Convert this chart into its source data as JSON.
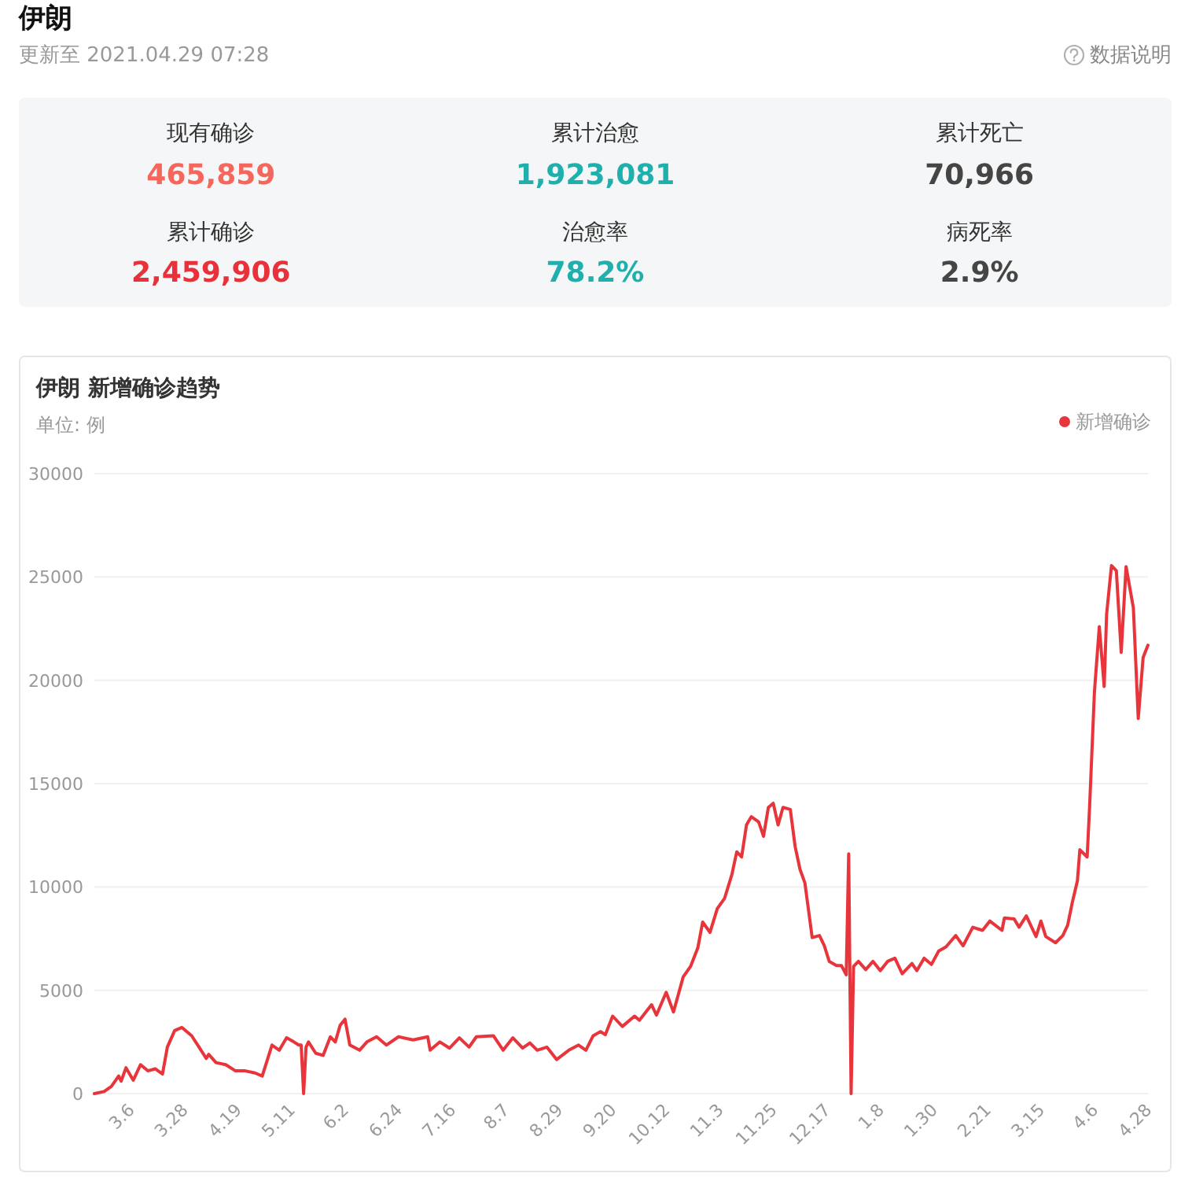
{
  "chart_data": [
    {
      "type": "other",
      "title": "伊朗",
      "subtitle": "更新至 2021.04.29 07:28",
      "annotations": [
        "数据说明",
        "现有确诊",
        "465,859",
        "累计治愈",
        "1,923,081",
        "累计死亡",
        "70,966",
        "累计确诊",
        "2,459,906",
        "治愈率",
        "78.2%",
        "病死率",
        "2.9%"
      ]
    },
    {
      "type": "line",
      "title": "伊朗 新增确诊趋势",
      "ylabel": "单位: 例",
      "x": [
        "2020-02-20",
        "2020-02-24",
        "2020-02-27",
        "2020-03-01",
        "2020-03-02",
        "2020-03-04",
        "2020-03-07",
        "2020-03-10",
        "2020-03-13",
        "2020-03-16",
        "2020-03-19",
        "2020-03-21",
        "2020-03-24",
        "2020-03-27",
        "2020-03-31",
        "2020-04-03",
        "2020-04-06",
        "2020-04-07",
        "2020-04-10",
        "2020-04-14",
        "2020-04-18",
        "2020-04-22",
        "2020-04-26",
        "2020-04-29",
        "2020-05-03",
        "2020-05-06",
        "2020-05-09",
        "2020-05-12",
        "2020-05-14",
        "2020-05-15",
        "2020-05-16",
        "2020-05-17",
        "2020-05-18",
        "2020-05-21",
        "2020-05-24",
        "2020-05-27",
        "2020-05-29",
        "2020-05-31",
        "2020-06-02",
        "2020-06-04",
        "2020-06-08",
        "2020-06-11",
        "2020-06-15",
        "2020-06-19",
        "2020-06-24",
        "2020-06-30",
        "2020-07-06",
        "2020-07-07",
        "2020-07-11",
        "2020-07-15",
        "2020-07-19",
        "2020-07-23",
        "2020-07-26",
        "2020-08-02",
        "2020-08-06",
        "2020-08-10",
        "2020-08-14",
        "2020-08-17",
        "2020-08-20",
        "2020-08-24",
        "2020-08-28",
        "2020-09-02",
        "2020-09-06",
        "2020-09-09",
        "2020-09-12",
        "2020-09-15",
        "2020-09-17",
        "2020-09-20",
        "2020-09-24",
        "2020-09-29",
        "2020-10-01",
        "2020-10-06",
        "2020-10-08",
        "2020-10-12",
        "2020-10-15",
        "2020-10-19",
        "2020-10-22",
        "2020-10-25",
        "2020-10-27",
        "2020-10-30",
        "2020-11-02",
        "2020-11-05",
        "2020-11-08",
        "2020-11-10",
        "2020-11-12",
        "2020-11-14",
        "2020-11-16",
        "2020-11-19",
        "2020-11-21",
        "2020-11-23",
        "2020-11-25",
        "2020-11-27",
        "2020-11-29",
        "2020-12-02",
        "2020-12-04",
        "2020-12-06",
        "2020-12-08",
        "2020-12-11",
        "2020-12-14",
        "2020-12-16",
        "2020-12-18",
        "2020-12-21",
        "2020-12-23",
        "2020-12-25",
        "2020-12-26",
        "2020-12-27",
        "2020-12-28",
        "2020-12-30",
        "2021-01-02",
        "2021-01-05",
        "2021-01-08",
        "2021-01-11",
        "2021-01-14",
        "2021-01-17",
        "2021-01-21",
        "2021-01-23",
        "2021-01-26",
        "2021-01-29",
        "2021-02-01",
        "2021-02-04",
        "2021-02-08",
        "2021-02-11",
        "2021-02-15",
        "2021-02-19",
        "2021-02-22",
        "2021-02-27",
        "2021-02-28",
        "2021-03-04",
        "2021-03-06",
        "2021-03-09",
        "2021-03-13",
        "2021-03-15",
        "2021-03-17",
        "2021-03-21",
        "2021-03-24",
        "2021-03-26",
        "2021-03-28",
        "2021-03-30",
        "2021-03-31",
        "2021-04-03",
        "2021-04-04",
        "2021-04-06",
        "2021-04-08",
        "2021-04-10",
        "2021-04-11",
        "2021-04-13",
        "2021-04-15",
        "2021-04-17",
        "2021-04-19",
        "2021-04-22",
        "2021-04-24",
        "2021-04-26",
        "2021-04-28"
      ],
      "series": [
        {
          "name": "新增确诊",
          "color": "#e8353b",
          "values": [
            0,
            100,
            350,
            850,
            600,
            1250,
            650,
            1400,
            1100,
            1200,
            950,
            2250,
            3050,
            3200,
            2800,
            2250,
            1700,
            1900,
            1500,
            1400,
            1100,
            1100,
            1000,
            850,
            2350,
            2100,
            2700,
            2500,
            2350,
            2350,
            0,
            2250,
            2500,
            1950,
            1850,
            2750,
            2500,
            3300,
            3600,
            2350,
            2100,
            2500,
            2750,
            2350,
            2750,
            2600,
            2750,
            2100,
            2500,
            2200,
            2700,
            2250,
            2750,
            2800,
            2100,
            2700,
            2200,
            2450,
            2100,
            2250,
            1650,
            2100,
            2350,
            2100,
            2800,
            3000,
            2850,
            3750,
            3250,
            3750,
            3550,
            4300,
            3800,
            4900,
            3950,
            5650,
            6150,
            7050,
            8300,
            7800,
            8950,
            9450,
            10600,
            11700,
            11450,
            13000,
            13400,
            13150,
            12450,
            13850,
            14050,
            13000,
            13850,
            13750,
            11950,
            10850,
            10200,
            7550,
            7650,
            7150,
            6400,
            6200,
            6200,
            5750,
            11600,
            0,
            6150,
            6400,
            6000,
            6400,
            5950,
            6400,
            6550,
            5800,
            6300,
            5950,
            6550,
            6250,
            6900,
            7100,
            7650,
            7150,
            8050,
            7900,
            8350,
            7900,
            8500,
            8450,
            8050,
            8600,
            7600,
            8350,
            7600,
            7300,
            7650,
            8150,
            9300,
            10300,
            11800,
            11450,
            13850,
            19450,
            22600,
            19700,
            23200,
            25550,
            25300,
            21350,
            25500,
            23500,
            18150,
            21100,
            21700
          ]
        }
      ],
      "xlim": [
        "2020-02-20",
        "2021-04-28"
      ],
      "xticks": [
        {
          "value": "2020-03-06",
          "label": "3.6"
        },
        {
          "value": "2020-03-28",
          "label": "3.28"
        },
        {
          "value": "2020-04-19",
          "label": "4.19"
        },
        {
          "value": "2020-05-11",
          "label": "5.11"
        },
        {
          "value": "2020-06-02",
          "label": "6.2"
        },
        {
          "value": "2020-06-24",
          "label": "6.24"
        },
        {
          "value": "2020-07-16",
          "label": "7.16"
        },
        {
          "value": "2020-08-07",
          "label": "8.7"
        },
        {
          "value": "2020-08-29",
          "label": "8.29"
        },
        {
          "value": "2020-09-20",
          "label": "9.20"
        },
        {
          "value": "2020-10-12",
          "label": "10.12"
        },
        {
          "value": "2020-11-03",
          "label": "11.3"
        },
        {
          "value": "2020-11-25",
          "label": "11.25"
        },
        {
          "value": "2020-12-17",
          "label": "12.17"
        },
        {
          "value": "2021-01-08",
          "label": "1.8"
        },
        {
          "value": "2021-01-30",
          "label": "1.30"
        },
        {
          "value": "2021-02-21",
          "label": "2.21"
        },
        {
          "value": "2021-03-15",
          "label": "3.15"
        },
        {
          "value": "2021-04-06",
          "label": "4.6"
        },
        {
          "value": "2021-04-28",
          "label": "4.28"
        }
      ],
      "ylim": [
        0,
        30000
      ],
      "yticks": [
        0,
        5000,
        10000,
        15000,
        20000,
        25000,
        30000
      ],
      "grid": "y",
      "legend": "top right"
    }
  ]
}
